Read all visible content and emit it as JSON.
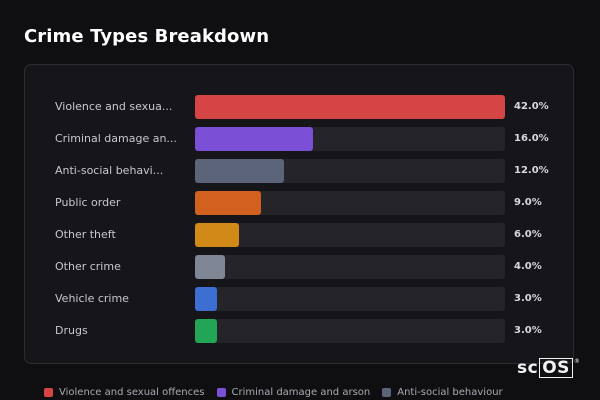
{
  "chart_data": {
    "type": "bar",
    "orientation": "horizontal",
    "title": "Crime Types Breakdown",
    "categories": [
      "Violence and sexual offences",
      "Criminal damage and arson",
      "Anti-social behaviour",
      "Public order",
      "Other theft",
      "Other crime",
      "Vehicle crime",
      "Drugs"
    ],
    "display_labels": [
      "Violence and sexua...",
      "Criminal damage an...",
      "Anti-social behavi...",
      "Public order",
      "Other theft",
      "Other crime",
      "Vehicle crime",
      "Drugs"
    ],
    "values": [
      42.0,
      16.0,
      12.0,
      9.0,
      6.0,
      4.0,
      3.0,
      3.0
    ],
    "value_labels": [
      "42.0%",
      "16.0%",
      "12.0%",
      "9.0%",
      "6.0%",
      "4.0%",
      "3.0%",
      "3.0%"
    ],
    "unit": "%",
    "xlim": [
      0,
      42
    ],
    "colors": [
      "#d64545",
      "#7b4fd6",
      "#5b6478",
      "#d2611f",
      "#d18a17",
      "#7f8696",
      "#3c6fd1",
      "#22a556"
    ],
    "legend_position": "bottom-left",
    "legend": [
      "Violence and sexual offences",
      "Criminal damage and arson",
      "Anti-social behaviour"
    ]
  },
  "watermark": "scOS"
}
